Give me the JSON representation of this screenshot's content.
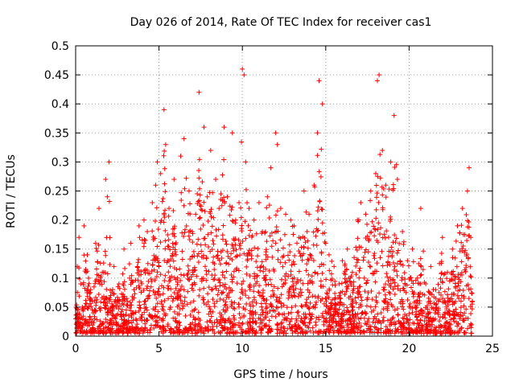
{
  "chart_data": {
    "type": "scatter",
    "title": "Day 026 of 2014, Rate Of TEC Index for receiver cas1",
    "xlabel": "GPS time / hours",
    "ylabel": "ROTI / TECUs",
    "xlim": [
      0,
      25
    ],
    "ylim": [
      0,
      0.5
    ],
    "xticks": [
      0,
      5,
      10,
      15,
      20,
      25
    ],
    "yticks": [
      0,
      0.05,
      0.1,
      0.15,
      0.2,
      0.25,
      0.3,
      0.35,
      0.4,
      0.45,
      0.5
    ],
    "xtick_labels": [
      "0",
      "5",
      "10",
      "15",
      "20",
      "25"
    ],
    "ytick_labels": [
      "0",
      "0.05",
      "0.1",
      "0.15",
      "0.2",
      "0.25",
      "0.3",
      "0.35",
      "0.4",
      "0.45",
      "0.5"
    ],
    "grid": true,
    "marker": "+",
    "color": "#ff0000",
    "x_range_of_data": [
      0,
      23.8
    ],
    "series": [
      {
        "name": "ROTI",
        "points": [
          [
            0.0,
            0.03
          ],
          [
            0.1,
            0.12
          ],
          [
            0.2,
            0.17
          ],
          [
            0.3,
            0.09
          ],
          [
            0.4,
            0.05
          ],
          [
            0.5,
            0.19
          ],
          [
            0.7,
            0.14
          ],
          [
            0.9,
            0.08
          ],
          [
            1.0,
            0.06
          ],
          [
            1.2,
            0.16
          ],
          [
            1.4,
            0.22
          ],
          [
            1.6,
            0.11
          ],
          [
            1.8,
            0.27
          ],
          [
            1.9,
            0.24
          ],
          [
            2.0,
            0.3
          ],
          [
            2.1,
            0.07
          ],
          [
            2.3,
            0.12
          ],
          [
            2.6,
            0.09
          ],
          [
            2.9,
            0.15
          ],
          [
            3.1,
            0.06
          ],
          [
            3.3,
            0.16
          ],
          [
            3.5,
            0.08
          ],
          [
            3.8,
            0.19
          ],
          [
            4.1,
            0.2
          ],
          [
            4.3,
            0.18
          ],
          [
            4.6,
            0.23
          ],
          [
            4.8,
            0.26
          ],
          [
            4.9,
            0.3
          ],
          [
            5.1,
            0.28
          ],
          [
            5.3,
            0.39
          ],
          [
            5.4,
            0.33
          ],
          [
            5.6,
            0.22
          ],
          [
            5.9,
            0.27
          ],
          [
            6.1,
            0.1
          ],
          [
            6.3,
            0.31
          ],
          [
            6.5,
            0.34
          ],
          [
            6.8,
            0.25
          ],
          [
            7.0,
            0.18
          ],
          [
            7.2,
            0.21
          ],
          [
            7.4,
            0.42
          ],
          [
            7.7,
            0.36
          ],
          [
            7.9,
            0.24
          ],
          [
            8.1,
            0.32
          ],
          [
            8.4,
            0.27
          ],
          [
            8.6,
            0.22
          ],
          [
            8.9,
            0.36
          ],
          [
            9.1,
            0.24
          ],
          [
            9.4,
            0.35
          ],
          [
            9.6,
            0.2
          ],
          [
            9.8,
            0.23
          ],
          [
            10.0,
            0.46
          ],
          [
            10.1,
            0.45
          ],
          [
            10.2,
            0.3
          ],
          [
            10.4,
            0.22
          ],
          [
            10.7,
            0.2
          ],
          [
            11.0,
            0.23
          ],
          [
            11.2,
            0.18
          ],
          [
            11.5,
            0.24
          ],
          [
            11.7,
            0.29
          ],
          [
            12.0,
            0.35
          ],
          [
            12.1,
            0.33
          ],
          [
            12.3,
            0.22
          ],
          [
            12.6,
            0.21
          ],
          [
            12.9,
            0.2
          ],
          [
            13.1,
            0.19
          ],
          [
            13.4,
            0.17
          ],
          [
            13.7,
            0.25
          ],
          [
            14.0,
            0.21
          ],
          [
            14.3,
            0.26
          ],
          [
            14.5,
            0.35
          ],
          [
            14.6,
            0.44
          ],
          [
            14.8,
            0.4
          ],
          [
            15.0,
            0.16
          ],
          [
            15.2,
            0.14
          ],
          [
            15.5,
            0.12
          ],
          [
            15.8,
            0.09
          ],
          [
            16.0,
            0.13
          ],
          [
            16.3,
            0.15
          ],
          [
            16.6,
            0.11
          ],
          [
            16.9,
            0.2
          ],
          [
            17.1,
            0.23
          ],
          [
            17.4,
            0.21
          ],
          [
            17.7,
            0.25
          ],
          [
            18.0,
            0.28
          ],
          [
            18.1,
            0.44
          ],
          [
            18.2,
            0.45
          ],
          [
            18.4,
            0.32
          ],
          [
            18.6,
            0.26
          ],
          [
            18.9,
            0.3
          ],
          [
            19.1,
            0.38
          ],
          [
            19.3,
            0.27
          ],
          [
            19.6,
            0.18
          ],
          [
            19.9,
            0.13
          ],
          [
            20.2,
            0.15
          ],
          [
            20.5,
            0.1
          ],
          [
            20.7,
            0.22
          ],
          [
            21.0,
            0.09
          ],
          [
            21.3,
            0.12
          ],
          [
            21.6,
            0.08
          ],
          [
            22.0,
            0.17
          ],
          [
            22.3,
            0.11
          ],
          [
            22.6,
            0.15
          ],
          [
            22.9,
            0.19
          ],
          [
            23.2,
            0.22
          ],
          [
            23.5,
            0.25
          ],
          [
            23.6,
            0.29
          ],
          [
            23.7,
            0.17
          ],
          [
            23.8,
            0.06
          ]
        ]
      }
    ]
  }
}
